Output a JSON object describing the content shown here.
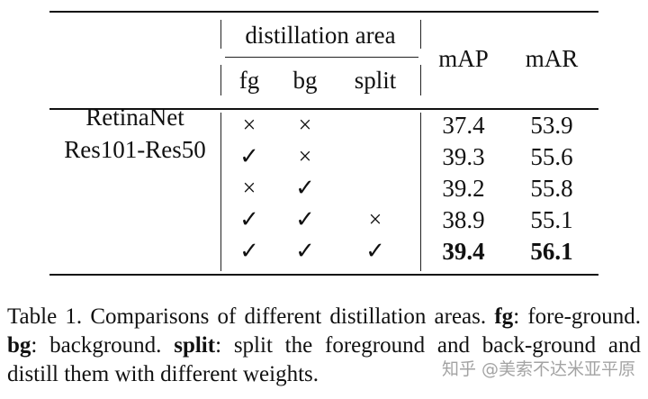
{
  "table": {
    "group_header": "distillation area",
    "sub_headers": [
      "fg",
      "bg",
      "split"
    ],
    "metric_headers": [
      "mAP",
      "mAR"
    ],
    "model_lines": [
      "RetinaNet",
      "Res101-Res50"
    ],
    "rows": [
      {
        "fg": "×",
        "bg": "×",
        "split": "",
        "mAP": "37.4",
        "mAR": "53.9"
      },
      {
        "fg": "✓",
        "bg": "×",
        "split": "",
        "mAP": "39.3",
        "mAR": "55.6"
      },
      {
        "fg": "×",
        "bg": "✓",
        "split": "",
        "mAP": "39.2",
        "mAR": "55.8"
      },
      {
        "fg": "✓",
        "bg": "✓",
        "split": "×",
        "mAP": "38.9",
        "mAR": "55.1"
      },
      {
        "fg": "✓",
        "bg": "✓",
        "split": "✓",
        "mAP": "39.4",
        "mAR": "56.1"
      }
    ]
  },
  "caption": {
    "lead": "Table 1.  Comparisons of different distillation areas. ",
    "fg_term": "fg",
    "fg_def": ": fore-ground. ",
    "bg_term": "bg",
    "bg_def": ": background. ",
    "split_term": "split",
    "split_def": ": split the foreground and back-ground and distill them with different weights."
  },
  "watermark": "知乎 @美索不达米亚平原"
}
